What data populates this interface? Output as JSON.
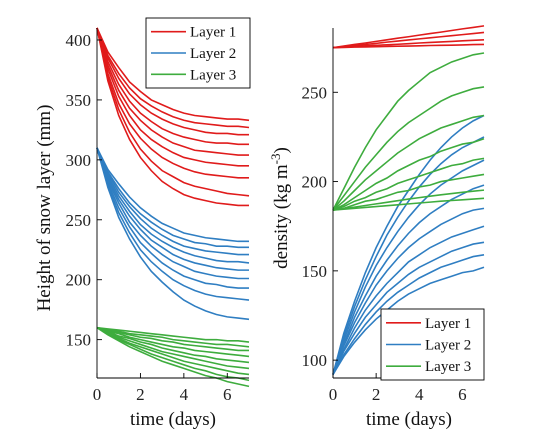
{
  "chart_data": [
    {
      "type": "line",
      "xlabel": "time (days)",
      "ylabel": "Height of snow layer (mm)",
      "xlim": [
        0,
        7
      ],
      "ylim": [
        118,
        410
      ],
      "xticks": [
        0,
        2,
        4,
        6
      ],
      "yticks": [
        150,
        200,
        250,
        300,
        350,
        400
      ],
      "legend": {
        "placement": "top-right",
        "entries": [
          "Layer 1",
          "Layer 2",
          "Layer 3"
        ]
      },
      "x": [
        0,
        0.5,
        1,
        1.5,
        2,
        2.5,
        3,
        3.5,
        4,
        4.5,
        5,
        5.5,
        6,
        6.5,
        7
      ],
      "series": [
        {
          "name": "Layer 1",
          "color": "#e01b1b",
          "curves": [
            [
              410,
              390,
              377,
              365,
              357,
              350,
              346,
              342,
              339,
              337,
              336,
              335,
              334,
              334,
              333
            ],
            [
              410,
              387,
              372,
              360,
              351,
              345,
              340,
              336,
              333,
              331,
              330,
              329,
              328,
              328,
              327
            ],
            [
              410,
              385,
              368,
              355,
              346,
              339,
              334,
              330,
              327,
              325,
              323,
              322,
              322,
              321,
              321
            ],
            [
              410,
              382,
              363,
              349,
              339,
              332,
              326,
              322,
              319,
              317,
              315,
              314,
              314,
              313,
              313
            ],
            [
              410,
              379,
              358,
              343,
              333,
              325,
              319,
              314,
              311,
              308,
              307,
              306,
              305,
              304,
              304
            ],
            [
              410,
              376,
              353,
              337,
              325,
              317,
              311,
              306,
              302,
              300,
              298,
              297,
              296,
              295,
              295
            ],
            [
              410,
              372,
              347,
              330,
              318,
              309,
              302,
              297,
              293,
              290,
              288,
              287,
              286,
              285,
              285
            ],
            [
              410,
              369,
              342,
              323,
              309,
              299,
              291,
              286,
              281,
              278,
              276,
              274,
              272,
              271,
              270
            ],
            [
              410,
              366,
              337,
              317,
              302,
              291,
              282,
              276,
              271,
              268,
              266,
              264,
              263,
              262,
              262
            ]
          ]
        },
        {
          "name": "Layer 2",
          "color": "#2f7ec2",
          "curves": [
            [
              310,
              292,
              280,
              269,
              260,
              253,
              247,
              243,
              239,
              237,
              235,
              234,
              233,
              232,
              232
            ],
            [
              310,
              290,
              276,
              264,
              255,
              248,
              242,
              237,
              234,
              231,
              230,
              228,
              228,
              227,
              227
            ],
            [
              310,
              289,
              273,
              261,
              251,
              243,
              237,
              232,
              228,
              226,
              224,
              223,
              222,
              221,
              221
            ],
            [
              310,
              287,
              270,
              257,
              246,
              238,
              232,
              227,
              223,
              220,
              218,
              216,
              215,
              215,
              214
            ],
            [
              310,
              285,
              267,
              253,
              242,
              233,
              227,
              221,
              217,
              214,
              212,
              210,
              209,
              208,
              208
            ],
            [
              310,
              283,
              264,
              248,
              237,
              228,
              221,
              215,
              211,
              207,
              205,
              203,
              202,
              201,
              201
            ],
            [
              310,
              281,
              260,
              244,
              231,
              222,
              214,
              208,
              203,
              200,
              197,
              196,
              194,
              193,
              193
            ],
            [
              310,
              279,
              256,
              239,
              225,
              215,
              207,
              200,
              195,
              191,
              188,
              186,
              185,
              184,
              183
            ],
            [
              310,
              277,
              252,
              234,
              219,
              207,
              198,
              190,
              183,
              178,
              174,
              171,
              169,
              168,
              167
            ]
          ]
        },
        {
          "name": "Layer 3",
          "color": "#3eac3e",
          "curves": [
            [
              160,
              159,
              158,
              157,
              156,
              155,
              154,
              153,
              152,
              151,
              150,
              150,
              149,
              149,
              148
            ],
            [
              160,
              158,
              157,
              155,
              154,
              153,
              152,
              150,
              149,
              148,
              147,
              146,
              146,
              145,
              144
            ],
            [
              160,
              158,
              156,
              154,
              152,
              151,
              149,
              148,
              146,
              145,
              144,
              143,
              142,
              141,
              141
            ],
            [
              160,
              157,
              155,
              152,
              150,
              148,
              146,
              144,
              143,
              141,
              140,
              139,
              138,
              137,
              136
            ],
            [
              160,
              157,
              153,
              151,
              148,
              146,
              143,
              141,
              139,
              137,
              136,
              134,
              133,
              132,
              131
            ],
            [
              160,
              156,
              152,
              149,
              146,
              143,
              140,
              138,
              136,
              134,
              132,
              130,
              128,
              127,
              126
            ],
            [
              160,
              156,
              151,
              147,
              144,
              141,
              138,
              135,
              132,
              130,
              128,
              126,
              124,
              122,
              121
            ],
            [
              160,
              155,
              150,
              146,
              142,
              138,
              135,
              132,
              129,
              126,
              124,
              121,
              119,
              118,
              116
            ],
            [
              160,
              154,
              149,
              144,
              140,
              136,
              132,
              129,
              126,
              123,
              120,
              118,
              115,
              113,
              111
            ]
          ]
        }
      ]
    },
    {
      "type": "line",
      "xlabel": "time (days)",
      "ylabel": "density (kg m",
      "ylabel_sup": "-3",
      "ylabel_end": ")",
      "xlim": [
        0,
        7
      ],
      "ylim": [
        90,
        286
      ],
      "xticks": [
        0,
        2,
        4,
        6
      ],
      "yticks": [
        100,
        150,
        200,
        250
      ],
      "legend": {
        "placement": "bottom-right",
        "entries": [
          "Layer 1",
          "Layer 2",
          "Layer 3"
        ]
      },
      "x": [
        0,
        0.5,
        1,
        1.5,
        2,
        2.5,
        3,
        3.5,
        4,
        4.5,
        5,
        5.5,
        6,
        6.5,
        7
      ],
      "series": [
        {
          "name": "Layer 1",
          "color": "#e01b1b",
          "curves": [
            [
              275,
              275.9,
              276.8,
              277.6,
              278.5,
              279.4,
              280.3,
              281.1,
              282,
              282.9,
              283.7,
              284.6,
              285.5,
              286.3,
              287.2
            ],
            [
              275,
              275.6,
              276.2,
              276.8,
              277.4,
              278.1,
              278.7,
              279.3,
              279.9,
              280.5,
              281.1,
              281.7,
              282.3,
              282.9,
              283.5
            ],
            [
              275,
              275.3,
              275.6,
              276,
              276.3,
              276.6,
              276.9,
              277.2,
              277.6,
              277.9,
              278.2,
              278.5,
              278.8,
              279.1,
              279.4
            ],
            [
              275,
              275.1,
              275.3,
              275.4,
              275.5,
              275.7,
              275.8,
              275.9,
              276,
              276.2,
              276.3,
              276.4,
              276.5,
              276.7,
              276.8
            ]
          ]
        },
        {
          "name": "Layer 2",
          "color": "#2f7ec2",
          "curves": [
            [
              92,
              115,
              133,
              149,
              163,
              175,
              186,
              195,
              204,
              212,
              219,
              225,
              230,
              234,
              237
            ],
            [
              92,
              113,
              130,
              145,
              158,
              170,
              180,
              189,
              197,
              204,
              210,
              215,
              219,
              222,
              225
            ],
            [
              92,
              111,
              127,
              141,
              153,
              163,
              172,
              180,
              187,
              193,
              198,
              202,
              206,
              209,
              212
            ],
            [
              92,
              109,
              124,
              136,
              147,
              156,
              164,
              171,
              177,
              182,
              186,
              190,
              193,
              196,
              198
            ],
            [
              92,
              108,
              121,
              132,
              142,
              150,
              157,
              163,
              168,
              172,
              176,
              179,
              182,
              184,
              185
            ],
            [
              92,
              106,
              118,
              128,
              136,
              143,
              149,
              155,
              159,
              163,
              166,
              169,
              171,
              173,
              175
            ],
            [
              92,
              105,
              115,
              124,
              131,
              138,
              143,
              148,
              152,
              155,
              158,
              161,
              163,
              165,
              166
            ],
            [
              92,
              103,
              112,
              120,
              127,
              133,
              138,
              142,
              146,
              149,
              152,
              154,
              156,
              158,
              159
            ],
            [
              92,
              102,
              110,
              117,
              123,
              128,
              133,
              137,
              140,
              143,
              145,
              147,
              149,
              150,
              152
            ]
          ]
        },
        {
          "name": "Layer 3",
          "color": "#3eac3e",
          "curves": [
            [
              184,
              196,
              208,
              219,
              229,
              237,
              245,
              251,
              256,
              261,
              264,
              267,
              269,
              271,
              272
            ],
            [
              184,
              192,
              200,
              208,
              215,
              222,
              228,
              233,
              237,
              241,
              245,
              248,
              250,
              252,
              253
            ],
            [
              184,
              189,
              195,
              201,
              206,
              211,
              216,
              220,
              224,
              227,
              230,
              232,
              234,
              236,
              237
            ],
            [
              184,
              187,
              191,
              195,
              199,
              202,
              206,
              209,
              212,
              214,
              217,
              219,
              221,
              222,
              224
            ],
            [
              184,
              186,
              189,
              191,
              194,
              196,
              199,
              201,
              203,
              205,
              207,
              209,
              210,
              212,
              213
            ],
            [
              184,
              185,
              187,
              189,
              190,
              192,
              194,
              195,
              197,
              198,
              200,
              201,
              202,
              203,
              204
            ],
            [
              184,
              184.8,
              185.7,
              186.6,
              187.5,
              188.4,
              189.3,
              190.2,
              191,
              191.8,
              192.6,
              193.3,
              194,
              194.6,
              195.2
            ],
            [
              184,
              184.5,
              185,
              185.5,
              186,
              186.5,
              187,
              187.5,
              188,
              188.5,
              189,
              189.4,
              189.8,
              190.2,
              190.6
            ]
          ]
        }
      ]
    }
  ]
}
